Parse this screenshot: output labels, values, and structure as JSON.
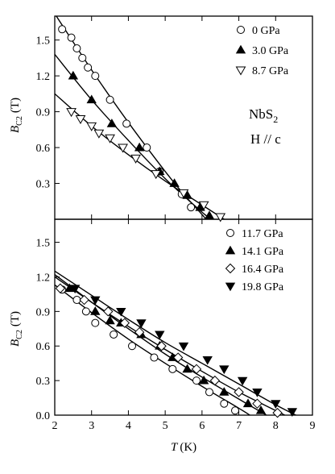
{
  "chart_data": [
    {
      "type": "scatter",
      "panel": "top",
      "xlabel_italic": "T",
      "xlabel_unit": "(K)",
      "ylabel_italic": "B",
      "ylabel_sub": "C2",
      "ylabel_unit": "(T)",
      "xlim": [
        2,
        9
      ],
      "ylim": [
        0,
        1.7
      ],
      "y_ticks": [
        0.3,
        0.6,
        0.9,
        1.2,
        1.5
      ],
      "y_tick_labels": [
        "0.3",
        "0.6",
        "0.9",
        "1.2",
        "1.5"
      ],
      "annotation_main": "NbS",
      "annotation_sub": "2",
      "annotation_field": "H // c",
      "legend_position": "top-right",
      "series": [
        {
          "name": "0 GPa",
          "marker": "open-circle",
          "points": [
            [
              2.2,
              1.59
            ],
            [
              2.45,
              1.52
            ],
            [
              2.6,
              1.43
            ],
            [
              2.75,
              1.35
            ],
            [
              2.9,
              1.27
            ],
            [
              3.1,
              1.2
            ],
            [
              3.5,
              1.0
            ],
            [
              3.95,
              0.8
            ],
            [
              4.5,
              0.6
            ],
            [
              4.85,
              0.4
            ],
            [
              5.45,
              0.21
            ],
            [
              5.7,
              0.1
            ]
          ],
          "fit": [
            [
              2.0,
              1.72
            ],
            [
              3.0,
              1.25
            ],
            [
              4.0,
              0.81
            ],
            [
              5.0,
              0.4
            ],
            [
              5.5,
              0.21
            ],
            [
              6.0,
              0.04
            ],
            [
              6.1,
              0.0
            ]
          ]
        },
        {
          "name": "3.0 GPa",
          "marker": "filled-up-triangle",
          "points": [
            [
              2.5,
              1.2
            ],
            [
              3.0,
              1.0
            ],
            [
              3.55,
              0.8
            ],
            [
              4.3,
              0.6
            ],
            [
              4.85,
              0.4
            ],
            [
              5.25,
              0.3
            ],
            [
              5.6,
              0.2
            ],
            [
              5.95,
              0.1
            ],
            [
              6.2,
              0.03
            ]
          ],
          "fit": [
            [
              2.0,
              1.38
            ],
            [
              3.0,
              1.0
            ],
            [
              4.0,
              0.66
            ],
            [
              5.0,
              0.34
            ],
            [
              6.0,
              0.06
            ],
            [
              6.25,
              0.0
            ]
          ]
        },
        {
          "name": "8.7 GPa",
          "marker": "open-down-triangle",
          "points": [
            [
              2.45,
              0.9
            ],
            [
              2.7,
              0.84
            ],
            [
              3.0,
              0.78
            ],
            [
              3.2,
              0.72
            ],
            [
              3.5,
              0.68
            ],
            [
              3.85,
              0.6
            ],
            [
              4.2,
              0.51
            ],
            [
              4.75,
              0.38
            ],
            [
              5.5,
              0.22
            ],
            [
              6.05,
              0.12
            ],
            [
              6.5,
              0.02
            ]
          ],
          "fit": [
            [
              2.0,
              1.05
            ],
            [
              3.0,
              0.78
            ],
            [
              4.0,
              0.54
            ],
            [
              5.0,
              0.32
            ],
            [
              6.0,
              0.12
            ],
            [
              6.6,
              0.0
            ]
          ]
        }
      ]
    },
    {
      "type": "scatter",
      "panel": "bottom",
      "xlabel_italic": "T",
      "xlabel_unit": "(K)",
      "ylabel_italic": "B",
      "ylabel_sub": "C2",
      "ylabel_unit": "(T)",
      "xlim": [
        2,
        9
      ],
      "ylim": [
        0,
        1.7
      ],
      "x_ticks": [
        2,
        3,
        4,
        5,
        6,
        7,
        8,
        9
      ],
      "x_tick_labels": [
        "2",
        "3",
        "4",
        "5",
        "6",
        "7",
        "8",
        "9"
      ],
      "y_ticks": [
        0.0,
        0.3,
        0.6,
        0.9,
        1.2,
        1.5
      ],
      "y_tick_labels": [
        "0.0",
        "0.3",
        "0.6",
        "0.9",
        "1.2",
        "1.5"
      ],
      "legend_position": "top-right",
      "series": [
        {
          "name": "11.7 GPa",
          "marker": "open-circle",
          "points": [
            [
              2.2,
              1.09
            ],
            [
              2.6,
              1.0
            ],
            [
              2.85,
              0.9
            ],
            [
              3.1,
              0.8
            ],
            [
              3.6,
              0.7
            ],
            [
              4.1,
              0.6
            ],
            [
              4.7,
              0.5
            ],
            [
              5.2,
              0.4
            ],
            [
              5.85,
              0.3
            ],
            [
              6.2,
              0.2
            ],
            [
              6.6,
              0.1
            ],
            [
              6.9,
              0.04
            ]
          ],
          "fit": [
            [
              2.0,
              1.13
            ],
            [
              3.0,
              0.89
            ],
            [
              4.0,
              0.66
            ],
            [
              5.0,
              0.45
            ],
            [
              6.0,
              0.25
            ],
            [
              7.0,
              0.06
            ],
            [
              7.3,
              0.0
            ]
          ]
        },
        {
          "name": "14.1 GPa",
          "marker": "filled-up-triangle",
          "points": [
            [
              2.4,
              1.1
            ],
            [
              3.1,
              0.9
            ],
            [
              3.5,
              0.82
            ],
            [
              3.8,
              0.8
            ],
            [
              4.35,
              0.7
            ],
            [
              4.85,
              0.6
            ],
            [
              5.2,
              0.5
            ],
            [
              5.6,
              0.4
            ],
            [
              6.05,
              0.3
            ],
            [
              6.6,
              0.2
            ],
            [
              7.25,
              0.1
            ],
            [
              7.6,
              0.04
            ]
          ],
          "fit": [
            [
              2.0,
              1.22
            ],
            [
              3.0,
              0.98
            ],
            [
              4.0,
              0.75
            ],
            [
              5.0,
              0.53
            ],
            [
              6.0,
              0.33
            ],
            [
              7.0,
              0.14
            ],
            [
              7.75,
              0.0
            ]
          ]
        },
        {
          "name": "16.4 GPa",
          "marker": "open-diamond",
          "points": [
            [
              2.15,
              1.1
            ],
            [
              2.8,
              1.0
            ],
            [
              3.45,
              0.9
            ],
            [
              3.9,
              0.8
            ],
            [
              4.3,
              0.72
            ],
            [
              4.9,
              0.6
            ],
            [
              5.35,
              0.5
            ],
            [
              5.85,
              0.4
            ],
            [
              6.35,
              0.3
            ],
            [
              7.0,
              0.2
            ],
            [
              7.5,
              0.1
            ],
            [
              8.05,
              0.02
            ]
          ],
          "fit": [
            [
              2.0,
              1.2
            ],
            [
              3.0,
              0.98
            ],
            [
              4.0,
              0.77
            ],
            [
              5.0,
              0.57
            ],
            [
              6.0,
              0.38
            ],
            [
              7.0,
              0.2
            ],
            [
              8.0,
              0.04
            ],
            [
              8.25,
              0.0
            ]
          ]
        },
        {
          "name": "19.8 GPa",
          "marker": "filled-down-triangle",
          "points": [
            [
              2.55,
              1.1
            ],
            [
              3.1,
              1.0
            ],
            [
              3.8,
              0.9
            ],
            [
              4.35,
              0.8
            ],
            [
              4.85,
              0.7
            ],
            [
              5.5,
              0.6
            ],
            [
              6.15,
              0.48
            ],
            [
              6.6,
              0.4
            ],
            [
              7.1,
              0.3
            ],
            [
              7.5,
              0.2
            ],
            [
              8.0,
              0.1
            ],
            [
              8.45,
              0.03
            ]
          ],
          "fit": [
            [
              2.0,
              1.25
            ],
            [
              3.0,
              1.04
            ],
            [
              4.0,
              0.83
            ],
            [
              5.0,
              0.63
            ],
            [
              6.0,
              0.45
            ],
            [
              7.0,
              0.27
            ],
            [
              8.0,
              0.09
            ],
            [
              8.55,
              0.0
            ]
          ]
        }
      ]
    }
  ]
}
